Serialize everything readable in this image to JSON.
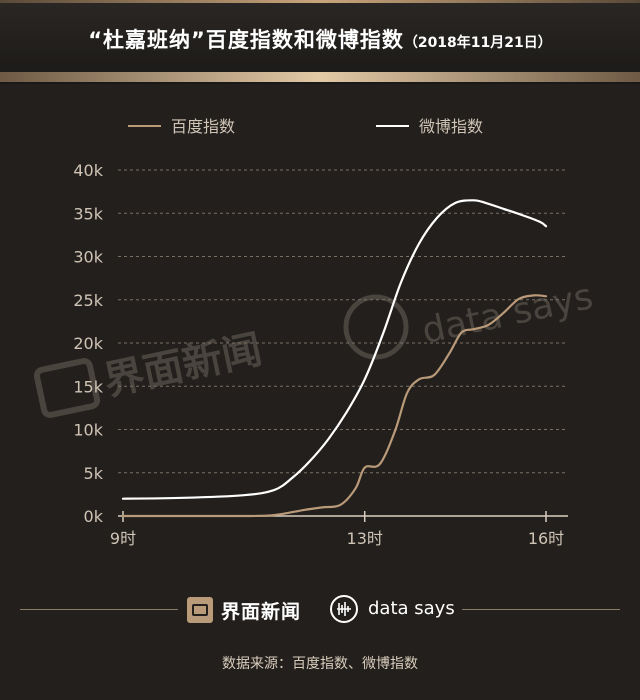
{
  "header": {
    "title_main": "“杜嘉班纳”百度指数和微博指数",
    "title_date": "（2018年11月21日）"
  },
  "watermarks": {
    "jiemian": "界面新闻",
    "datasays": "data says"
  },
  "footer": {
    "brand_cn": "界面新闻",
    "brand_en": "data says",
    "source": "数据来源：百度指数、微博指数"
  },
  "colors": {
    "background": "#221f1c",
    "baidu": "#b99a79",
    "weibo": "#ffffff",
    "grid": "#7a7064",
    "axis_text": "#cfc4b6"
  },
  "chart_data": {
    "type": "line",
    "xlabel": "",
    "ylabel": "",
    "ylim": [
      0,
      40000
    ],
    "xlim": [
      9,
      16.2
    ],
    "y_ticks": [
      0,
      5000,
      10000,
      15000,
      20000,
      25000,
      30000,
      35000,
      40000
    ],
    "y_tick_labels": [
      "0k",
      "5k",
      "10k",
      "15k",
      "20k",
      "25k",
      "30k",
      "35k",
      "40k"
    ],
    "x_ticks": [
      9,
      13,
      16
    ],
    "x_tick_labels": [
      "9时",
      "13时",
      "16时"
    ],
    "grid": "horizontal dashed",
    "legend_position": "top",
    "series": [
      {
        "name": "百度指数",
        "color": "#b99a79",
        "x": [
          9,
          10,
          11,
          11.5,
          12,
          12.3,
          12.6,
          12.85,
          13.0,
          13.25,
          13.5,
          13.7,
          13.9,
          14.15,
          14.4,
          14.6,
          14.8,
          15.05,
          15.3,
          15.55,
          15.8,
          16.0
        ],
        "y": [
          0,
          0,
          0,
          100,
          700,
          1000,
          1300,
          3200,
          5600,
          6000,
          9800,
          14200,
          15800,
          16300,
          18800,
          21200,
          21600,
          22100,
          23500,
          25100,
          25500,
          25400
        ]
      },
      {
        "name": "微博指数",
        "color": "#ffffff",
        "x": [
          9,
          10,
          11,
          11.5,
          11.8,
          12.1,
          12.4,
          12.7,
          13.0,
          13.3,
          13.6,
          13.9,
          14.2,
          14.5,
          14.8,
          15.0,
          15.3,
          15.6,
          15.9,
          16.0
        ],
        "y": [
          2000,
          2100,
          2400,
          3000,
          4400,
          6400,
          8900,
          12000,
          15800,
          21000,
          27000,
          31500,
          34500,
          36200,
          36500,
          36200,
          35500,
          34800,
          34000,
          33500
        ]
      }
    ]
  }
}
